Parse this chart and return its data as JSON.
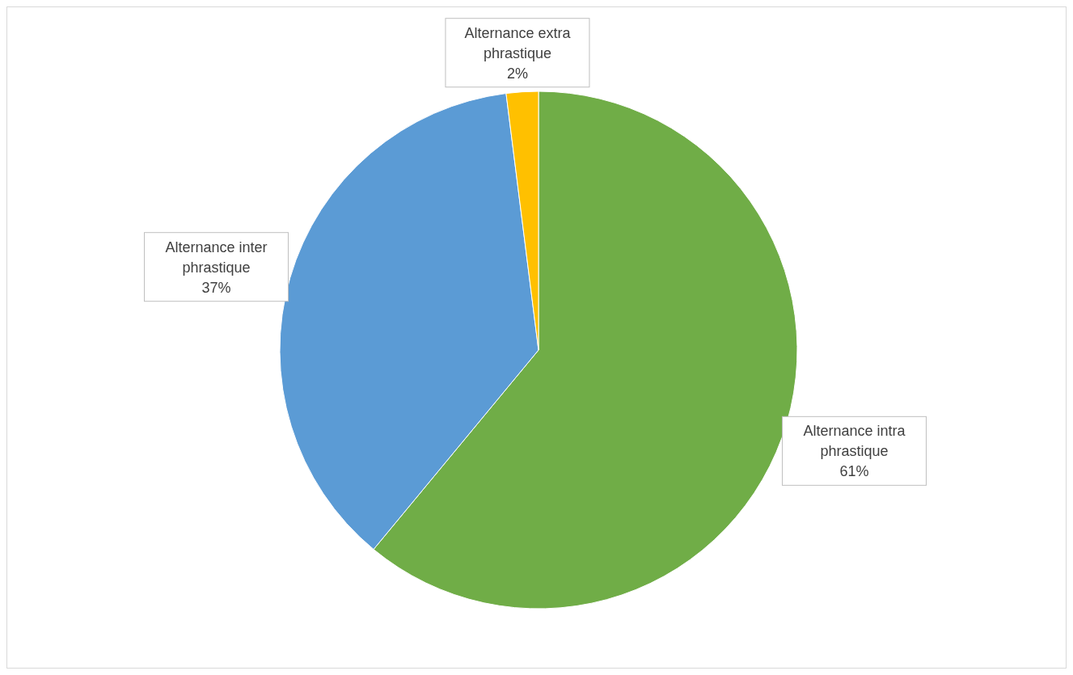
{
  "chart_data": {
    "type": "pie",
    "categories": [
      "Alternance intra phrastique",
      "Alternance inter phrastique",
      "Alternance extra phrastique"
    ],
    "values": [
      61,
      37,
      2
    ],
    "colors": [
      "#70ad47",
      "#5b9bd5",
      "#ffc000"
    ],
    "value_labels": [
      "61%",
      "37%",
      "2%"
    ]
  }
}
